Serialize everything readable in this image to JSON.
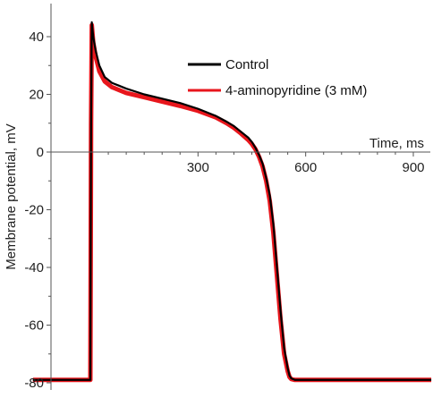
{
  "chart_data": {
    "type": "line",
    "title": "",
    "xlabel": "Time, ms",
    "ylabel": "Membrane potential, mV",
    "xlim": [
      -160,
      950
    ],
    "ylim": [
      -82,
      48
    ],
    "x_ticks": [
      300,
      600,
      900
    ],
    "x_tick_labels": [
      "300",
      "600",
      "900"
    ],
    "y_ticks": [
      40,
      20,
      0,
      -20,
      -40,
      -60,
      -80
    ],
    "y_tick_labels": [
      "40",
      "20",
      "0",
      "-20",
      "-40",
      "-60",
      "-80"
    ],
    "grid": false,
    "legend_position": "top-right",
    "series": [
      {
        "name": "Control",
        "color": "#000000",
        "x": [
          -160,
          0,
          2,
          4,
          8,
          15,
          25,
          40,
          60,
          80,
          100,
          150,
          200,
          250,
          300,
          350,
          380,
          400,
          420,
          440,
          450,
          460,
          470,
          480,
          490,
          500,
          510,
          520,
          530,
          540,
          550,
          555,
          560,
          570,
          600,
          700,
          800,
          950
        ],
        "y": [
          -79,
          -79,
          10,
          45,
          40,
          35,
          30,
          26,
          24,
          23,
          22,
          20,
          18.5,
          17,
          15,
          12.5,
          10.5,
          9,
          7,
          5,
          3.5,
          1.5,
          -1,
          -4,
          -9,
          -15,
          -25,
          -40,
          -55,
          -68,
          -75,
          -77.5,
          -78.5,
          -79,
          -79,
          -79,
          -79,
          -79
        ]
      },
      {
        "name": "4-aminopyridine (3 mM)",
        "color": "#e8161c",
        "x": [
          -160,
          0,
          2,
          4,
          8,
          15,
          25,
          40,
          60,
          80,
          100,
          150,
          200,
          250,
          300,
          350,
          380,
          400,
          420,
          440,
          450,
          460,
          470,
          480,
          490,
          500,
          510,
          520,
          530,
          540,
          550,
          555,
          560,
          570,
          600,
          700,
          800,
          950
        ],
        "y": [
          -79,
          -79,
          10,
          44,
          38,
          33,
          28,
          24.5,
          22.5,
          21.5,
          20.5,
          19,
          17.5,
          16,
          14.3,
          12,
          10,
          8.4,
          6.4,
          4.2,
          2.8,
          1,
          -1.6,
          -5,
          -10,
          -17,
          -28,
          -43,
          -58,
          -70,
          -76,
          -78,
          -78.7,
          -79,
          -79,
          -79,
          -79,
          -79
        ]
      }
    ]
  }
}
